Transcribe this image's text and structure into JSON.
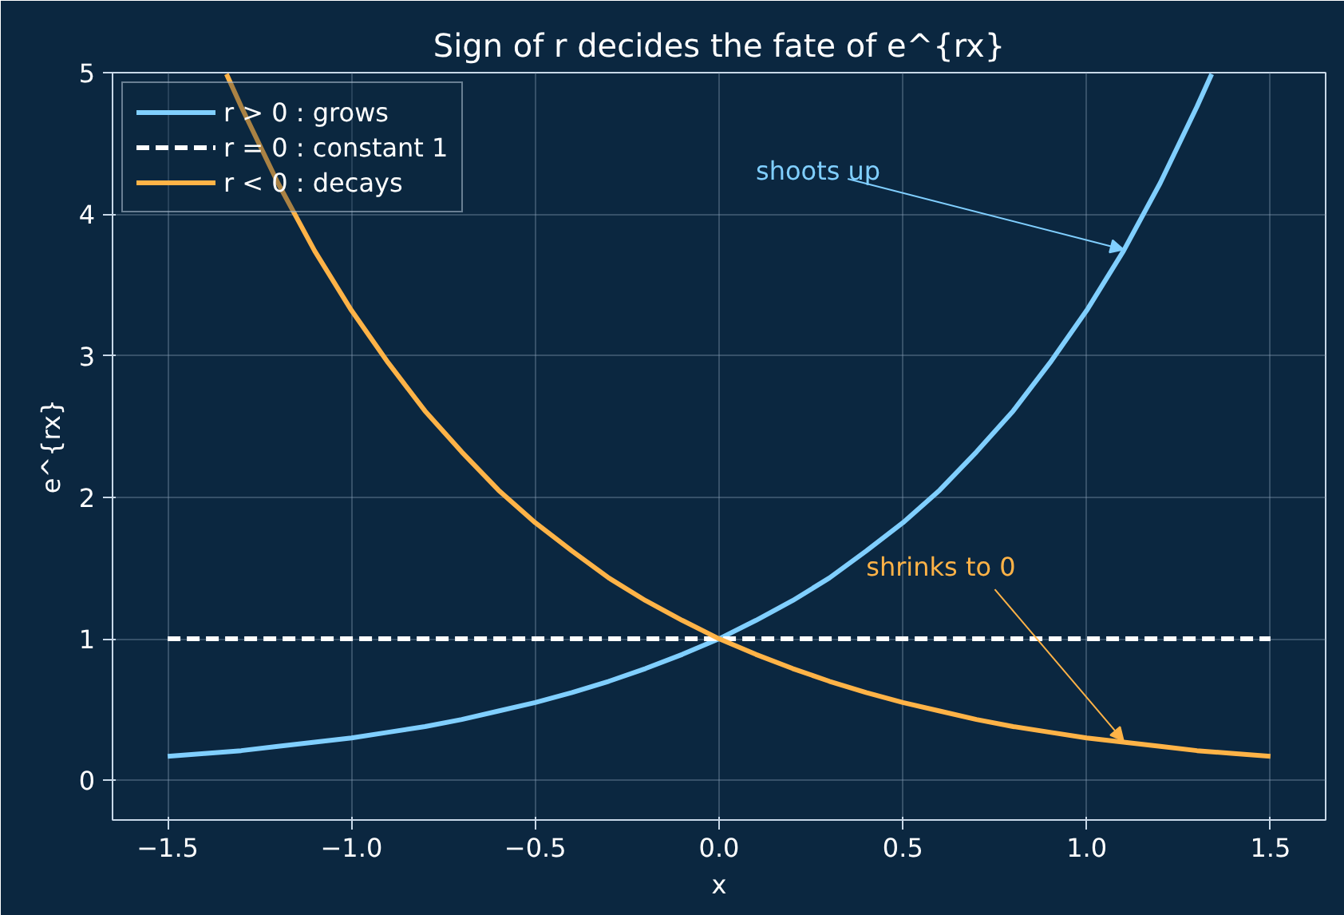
{
  "chart_data": {
    "type": "line",
    "title": "Sign of r decides the fate of e^{rx}",
    "xlabel": "x",
    "ylabel": "e^{rx}",
    "xlim": [
      -1.65,
      1.65
    ],
    "ylim": [
      -0.28,
      5
    ],
    "xticks": [
      {
        "value": -1.5,
        "label": "−1.5"
      },
      {
        "value": -1.0,
        "label": "−1.0"
      },
      {
        "value": -0.5,
        "label": "−0.5"
      },
      {
        "value": 0,
        "label": "0.0"
      },
      {
        "value": 0.5,
        "label": "0.5"
      },
      {
        "value": 1.0,
        "label": "1.0"
      },
      {
        "value": 1.5,
        "label": "1.5"
      }
    ],
    "yticks": [
      0,
      1,
      2,
      3,
      4,
      5
    ],
    "grid": true,
    "legend": "top left",
    "series": [
      {
        "name": "r > 0 : grows",
        "color": "#80cfff",
        "line_style": "solid",
        "x": [
          -1.5,
          -1.4,
          -1.3,
          -1.2,
          -1.1,
          -1.0,
          -0.9,
          -0.8,
          -0.7,
          -0.6,
          -0.5,
          -0.4,
          -0.3,
          -0.2,
          -0.1,
          0,
          0.1,
          0.2,
          0.3,
          0.4,
          0.5,
          0.6,
          0.7,
          0.8,
          0.9,
          1.0,
          1.1,
          1.2,
          1.3,
          1.34
        ],
        "values": [
          0.17,
          0.19,
          0.21,
          0.24,
          0.27,
          0.3,
          0.34,
          0.38,
          0.43,
          0.49,
          0.55,
          0.62,
          0.7,
          0.79,
          0.89,
          1,
          1.13,
          1.27,
          1.43,
          1.62,
          1.82,
          2.05,
          2.32,
          2.61,
          2.95,
          3.32,
          3.74,
          4.22,
          4.76,
          4.99
        ]
      },
      {
        "name": "r = 0 : constant 1",
        "color": "#ffffff",
        "line_style": "dashed",
        "x": [
          -1.5,
          1.5
        ],
        "values": [
          1,
          1
        ]
      },
      {
        "name": "r < 0 : decays",
        "color": "#ffb347",
        "line_style": "solid",
        "x": [
          -1.34,
          -1.3,
          -1.2,
          -1.1,
          -1.0,
          -0.9,
          -0.8,
          -0.7,
          -0.6,
          -0.5,
          -0.4,
          -0.3,
          -0.2,
          -0.1,
          0,
          0.1,
          0.2,
          0.3,
          0.4,
          0.5,
          0.6,
          0.7,
          0.8,
          0.9,
          1.0,
          1.1,
          1.2,
          1.3,
          1.4,
          1.5
        ],
        "values": [
          4.99,
          4.76,
          4.22,
          3.74,
          3.32,
          2.95,
          2.61,
          2.32,
          2.05,
          1.82,
          1.62,
          1.43,
          1.27,
          1.13,
          1,
          0.89,
          0.79,
          0.7,
          0.62,
          0.55,
          0.49,
          0.43,
          0.38,
          0.34,
          0.3,
          0.27,
          0.24,
          0.21,
          0.19,
          0.17
        ]
      }
    ],
    "annotations": [
      {
        "text": "shoots up",
        "x": 1.1,
        "y": 3.75
      },
      {
        "text": "shrinks to 0",
        "x": 1.1,
        "y": 0.28
      }
    ]
  }
}
